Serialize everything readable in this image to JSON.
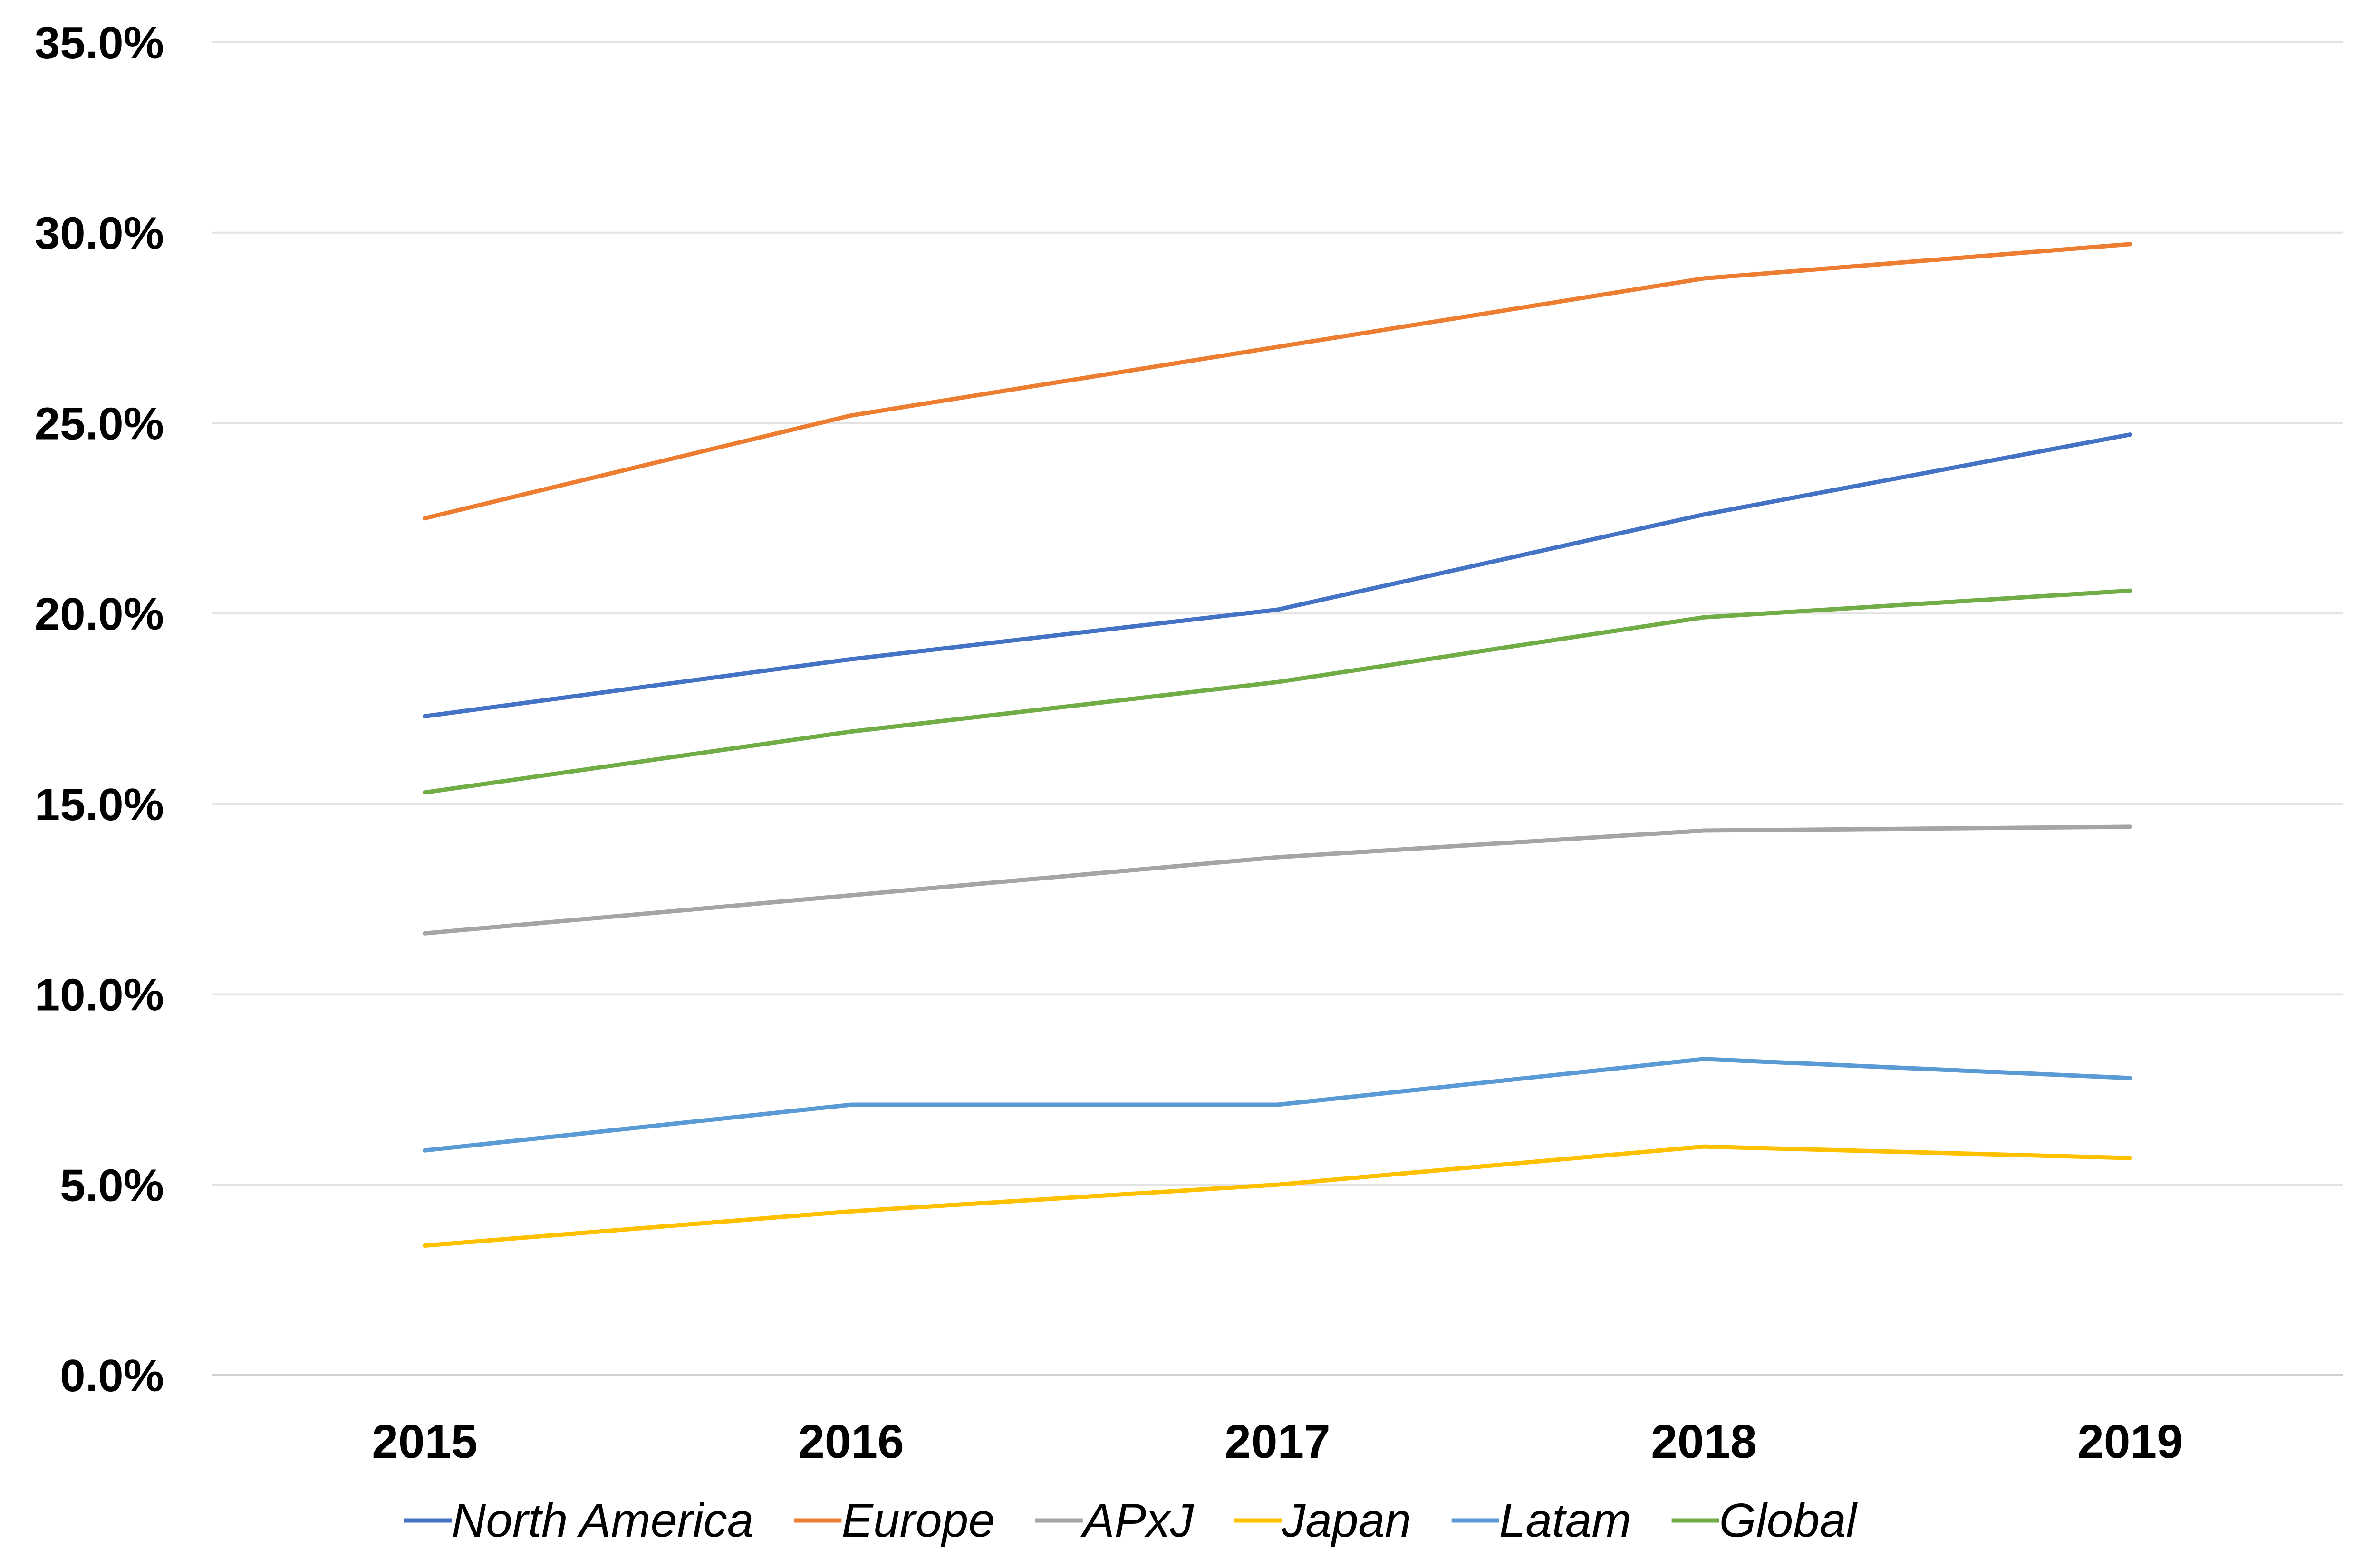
{
  "chart_data": {
    "type": "line",
    "categories": [
      "2015",
      "2016",
      "2017",
      "2018",
      "2019"
    ],
    "y_ticks": [
      "0.0%",
      "5.0%",
      "10.0%",
      "15.0%",
      "20.0%",
      "25.0%",
      "30.0%",
      "35.0%"
    ],
    "ylim": [
      0,
      35
    ],
    "grid": true,
    "legend_position": "bottom",
    "series": [
      {
        "name": "North America",
        "color": "#4472C4",
        "values": [
          17.3,
          18.8,
          20.1,
          22.6,
          24.7
        ]
      },
      {
        "name": "Europe",
        "color": "#ED7D31",
        "values": [
          22.5,
          25.2,
          27.0,
          28.8,
          29.7
        ]
      },
      {
        "name": "APxJ",
        "color": "#A5A5A5",
        "values": [
          11.6,
          12.6,
          13.6,
          14.3,
          14.4
        ]
      },
      {
        "name": "Japan",
        "color": "#FFC000",
        "values": [
          3.4,
          4.3,
          5.0,
          6.0,
          5.7
        ]
      },
      {
        "name": "Latam",
        "color": "#5B9BD5",
        "values": [
          5.9,
          7.1,
          7.1,
          8.3,
          7.8
        ]
      },
      {
        "name": "Global",
        "color": "#70AD47",
        "values": [
          15.3,
          16.9,
          18.2,
          19.9,
          20.6
        ]
      }
    ]
  }
}
